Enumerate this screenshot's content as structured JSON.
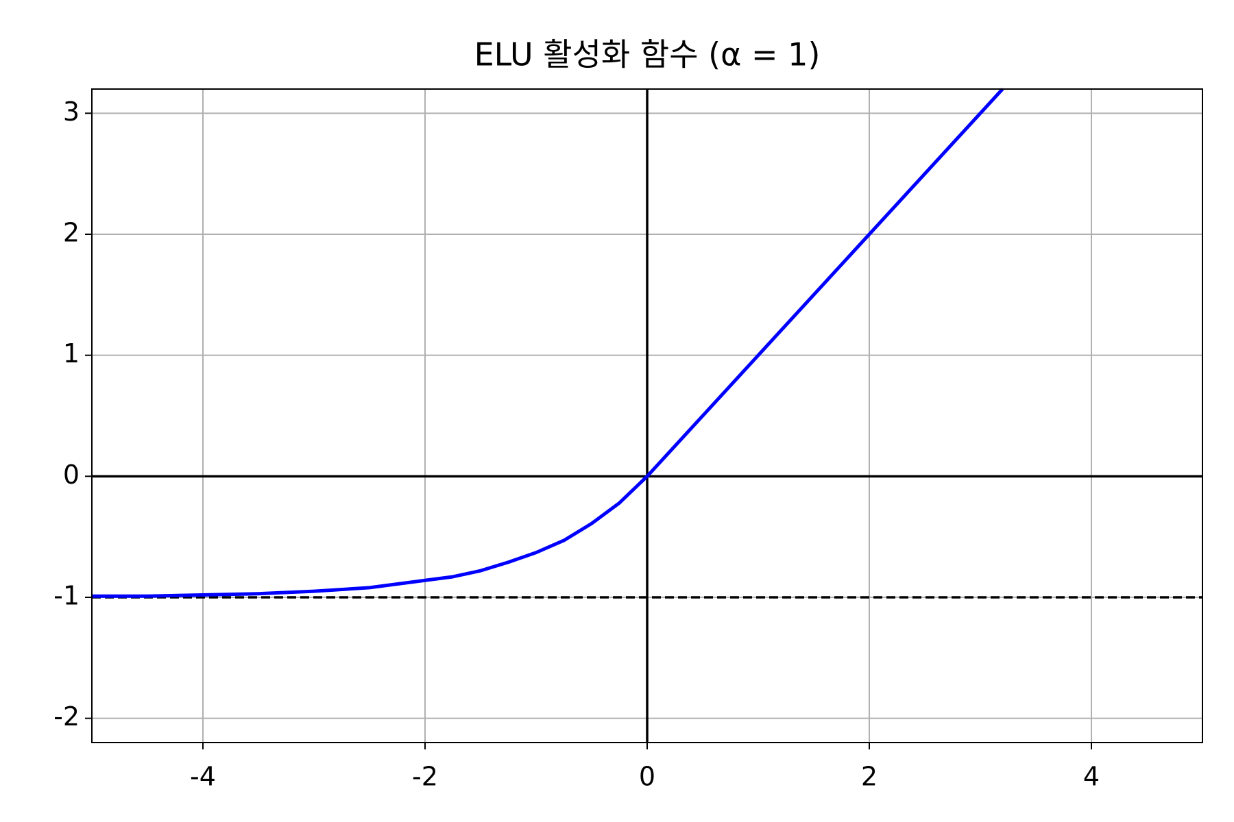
{
  "chart_data": {
    "type": "line",
    "title": "ELU 활성화 함수 (α = 1)",
    "x": [
      -5,
      -4.5,
      -4,
      -3.5,
      -3,
      -2.5,
      -2,
      -1.75,
      -1.5,
      -1.25,
      -1,
      -0.75,
      -0.5,
      -0.25,
      0,
      1,
      2,
      3.2
    ],
    "series": [
      {
        "name": "ELU",
        "color": "#0000ff",
        "values": [
          -0.99,
          -0.99,
          -0.98,
          -0.97,
          -0.95,
          -0.92,
          -0.86,
          -0.83,
          -0.78,
          -0.71,
          -0.63,
          -0.53,
          -0.39,
          -0.22,
          0,
          1,
          2,
          3.2
        ]
      }
    ],
    "hlines": [
      {
        "y": 0,
        "style": "solid"
      },
      {
        "y": -1,
        "style": "dashed"
      }
    ],
    "vlines": [
      {
        "x": 0,
        "style": "solid"
      }
    ],
    "xlim": [
      -5,
      5
    ],
    "ylim": [
      -2.2,
      3.2
    ],
    "xticks": [
      -4,
      -2,
      0,
      2,
      4
    ],
    "yticks": [
      -2,
      -1,
      0,
      1,
      2,
      3
    ],
    "grid": true
  }
}
